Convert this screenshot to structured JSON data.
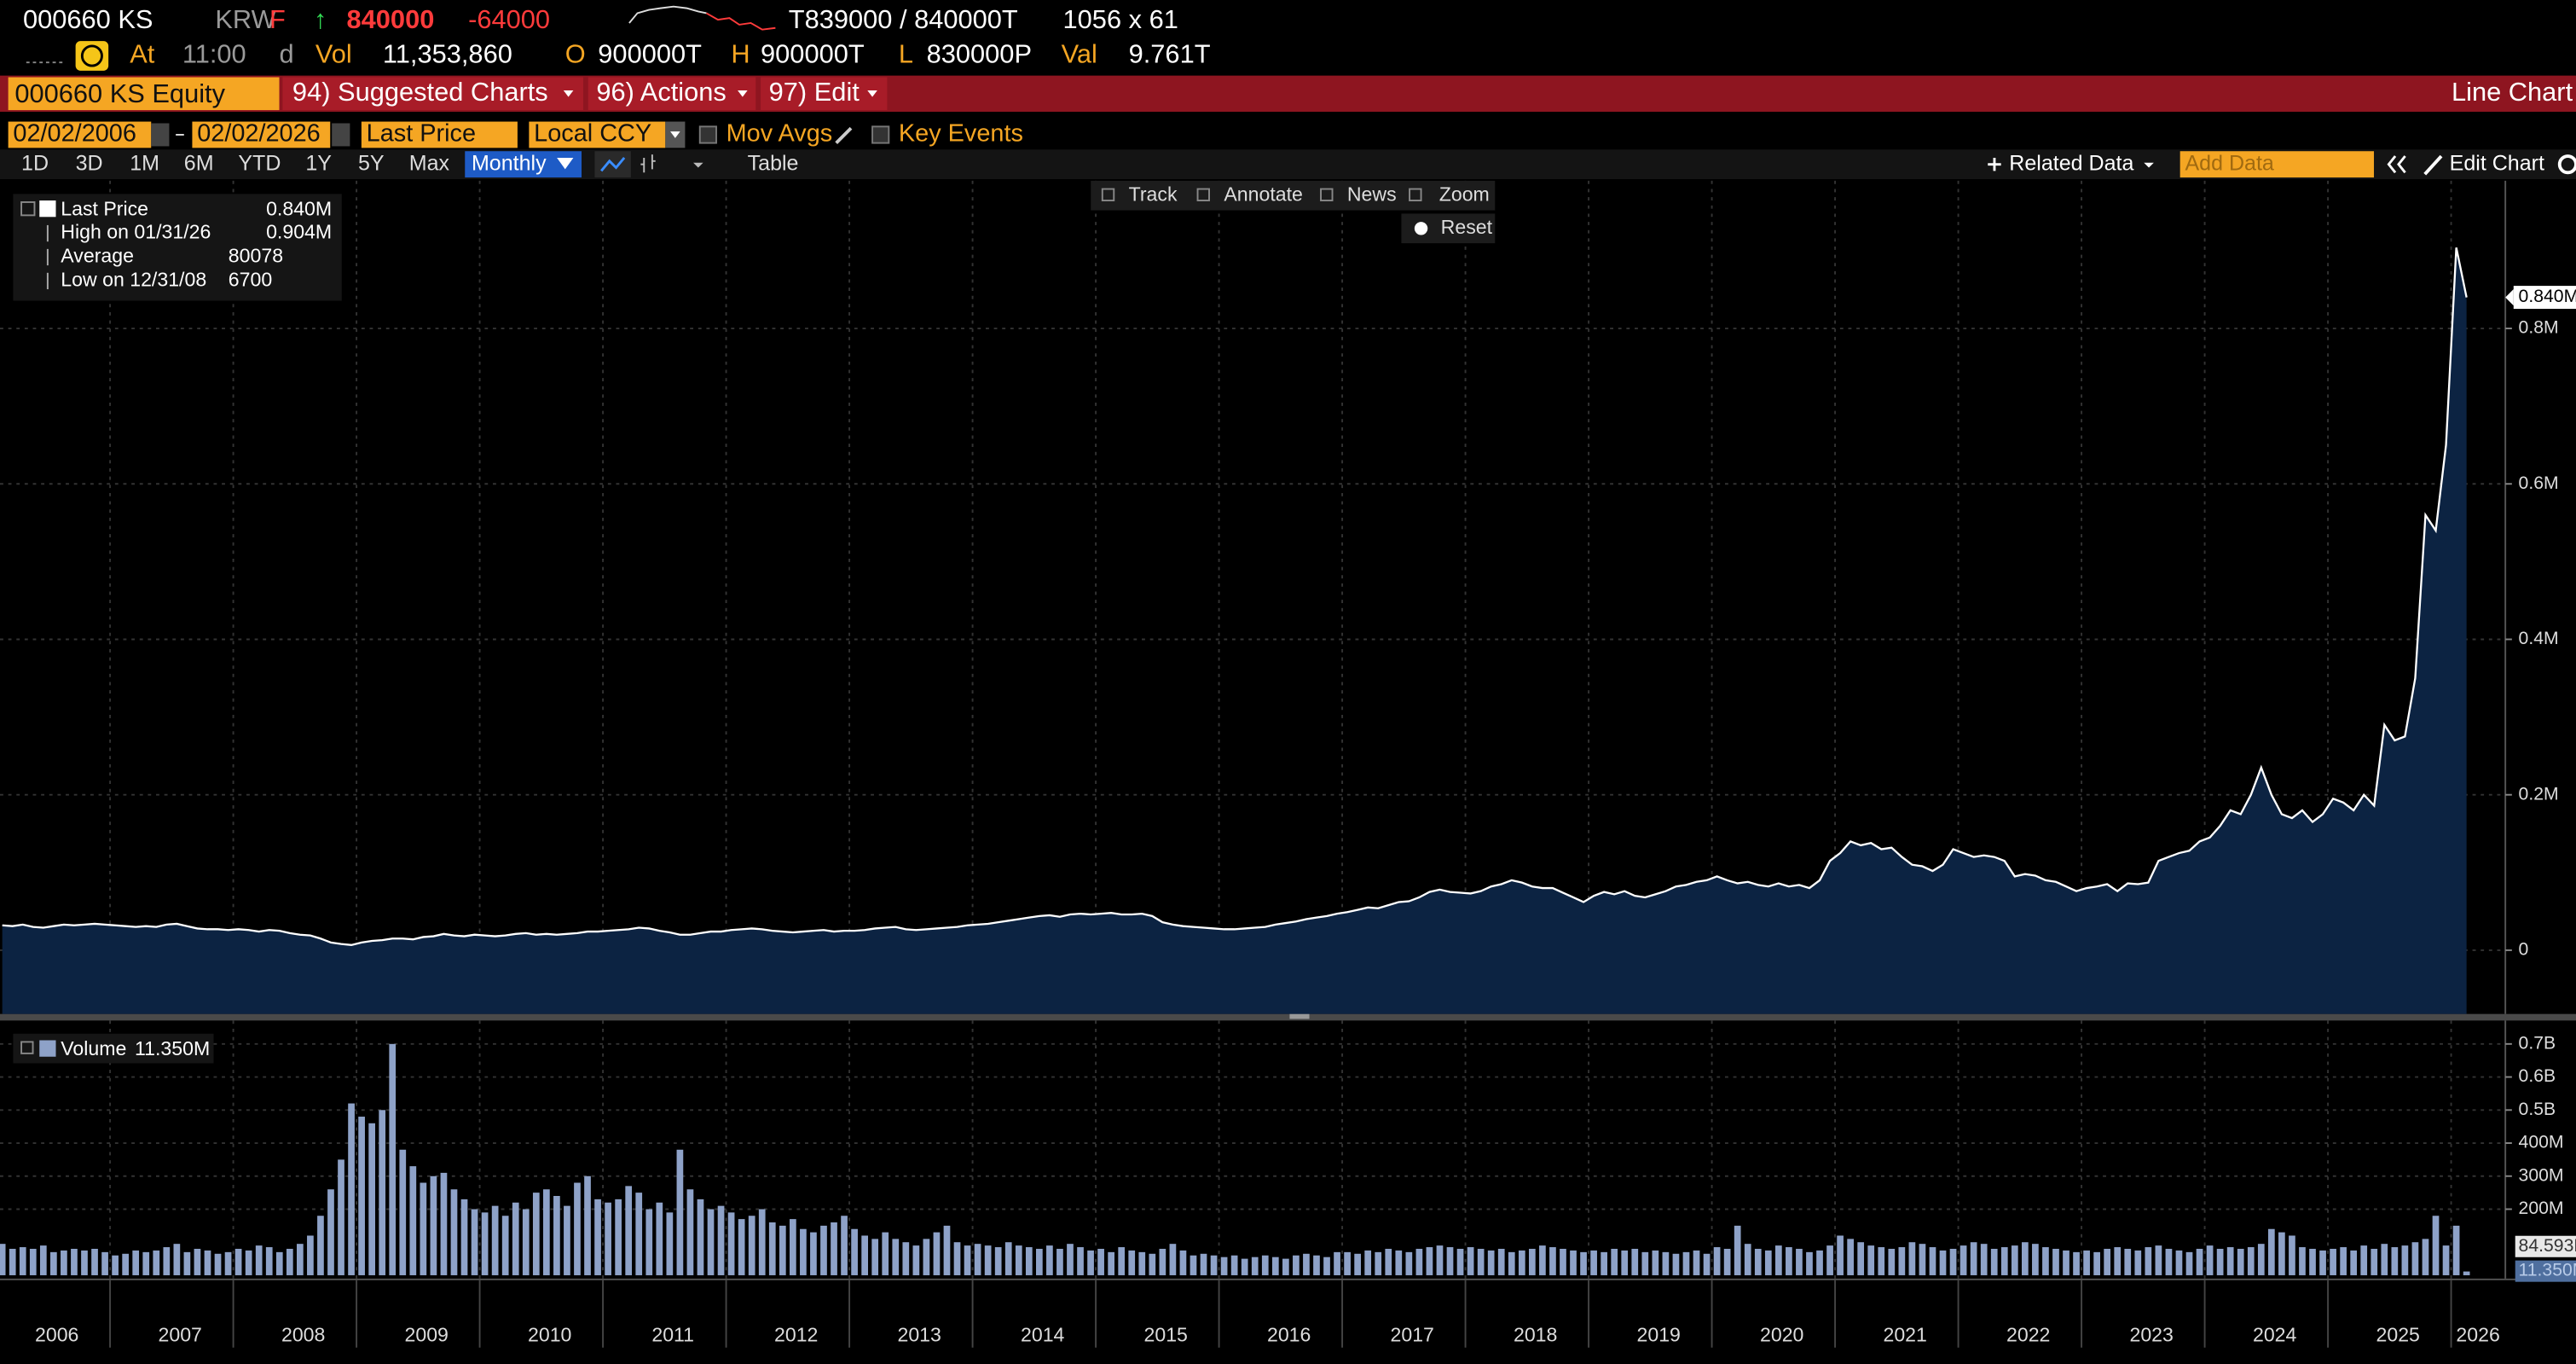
{
  "header": {
    "ticker": "000660 KS",
    "currency": "KRW",
    "flag": "F",
    "arrow": "↑",
    "last": "840000",
    "change": "-64000",
    "bidask": "T839000 / 840000T",
    "size": "1056 x 61",
    "at_label": "At",
    "time": "11:00",
    "time_flag": "d",
    "vol_label": "Vol",
    "volume": "11,353,860",
    "open_label": "O",
    "open": "900000T",
    "high_label": "H",
    "high": "900000T",
    "low_label": "L",
    "low": "830000P",
    "val_label": "Val",
    "value": "9.761T"
  },
  "menu": {
    "security": "000660 KS Equity",
    "suggested": "94) Suggested Charts",
    "actions": "96) Actions",
    "edit": "97) Edit",
    "view": "Line Chart"
  },
  "controls": {
    "start": "02/02/2006",
    "end": "02/02/2026",
    "currency": "Local CCY",
    "mov_avgs": "Mov Avgs",
    "key_events": "Key Events",
    "periods": [
      "1D",
      "3D",
      "1M",
      "6M",
      "YTD",
      "1Y",
      "5Y",
      "Max"
    ],
    "frequency": "Monthly",
    "table": "Table",
    "related": "Related Data",
    "add_data": "Add Data",
    "edit_chart": "Edit Chart",
    "tools": [
      "Track",
      "Annotate",
      "News",
      "Zoom"
    ],
    "reset": "Reset"
  },
  "chart_data": [
    {
      "type": "area",
      "series": [
        {
          "name": "Last Price",
          "color": "#ffffff",
          "fill": "#0c2342",
          "values": [
            32000,
            31000,
            33000,
            30000,
            29000,
            31000,
            33000,
            32000,
            33000,
            34000,
            33000,
            32000,
            31000,
            30000,
            31000,
            30000,
            33000,
            34000,
            31000,
            28000,
            27000,
            27000,
            26000,
            27000,
            26000,
            24000,
            26000,
            25000,
            22000,
            20000,
            19000,
            15000,
            10000,
            8000,
            6700,
            10000,
            12000,
            13000,
            15000,
            15000,
            14000,
            17000,
            18000,
            21000,
            19000,
            18000,
            20000,
            19000,
            18000,
            19000,
            21000,
            22000,
            20000,
            21000,
            20000,
            21000,
            22000,
            24000,
            24000,
            25000,
            26000,
            27000,
            29000,
            28000,
            25000,
            23000,
            20000,
            20000,
            22000,
            24000,
            24000,
            26000,
            27000,
            28000,
            27000,
            25000,
            24000,
            23000,
            24000,
            25000,
            26000,
            24000,
            25000,
            25000,
            26000,
            28000,
            29000,
            30000,
            27000,
            26000,
            27000,
            28000,
            29000,
            30000,
            32000,
            33000,
            34000,
            36000,
            38000,
            40000,
            42000,
            44000,
            45000,
            43000,
            46000,
            47000,
            46000,
            47000,
            48000,
            46000,
            46000,
            47000,
            44000,
            36000,
            33000,
            31000,
            30000,
            29000,
            28000,
            27000,
            27000,
            28000,
            29000,
            30000,
            33000,
            35000,
            37000,
            40000,
            42000,
            44000,
            47000,
            49000,
            52000,
            55000,
            54000,
            58000,
            62000,
            63000,
            68000,
            75000,
            78000,
            75000,
            74000,
            73000,
            76000,
            82000,
            85000,
            90000,
            87000,
            82000,
            80000,
            80000,
            74000,
            68000,
            62000,
            70000,
            75000,
            72000,
            76000,
            70000,
            68000,
            72000,
            76000,
            82000,
            84000,
            88000,
            90000,
            95000,
            90000,
            86000,
            88000,
            84000,
            82000,
            86000,
            82000,
            84000,
            80000,
            90000,
            115000,
            125000,
            140000,
            135000,
            138000,
            130000,
            132000,
            120000,
            110000,
            108000,
            102000,
            110000,
            130000,
            125000,
            120000,
            122000,
            120000,
            115000,
            95000,
            98000,
            96000,
            90000,
            88000,
            82000,
            76000,
            80000,
            82000,
            85000,
            76000,
            86000,
            85000,
            87000,
            115000,
            120000,
            125000,
            128000,
            140000,
            145000,
            160000,
            180000,
            175000,
            200000,
            235000,
            200000,
            175000,
            170000,
            180000,
            165000,
            175000,
            195000,
            190000,
            180000,
            200000,
            186000,
            290000,
            270000,
            275000,
            350000,
            560000,
            540000,
            650000,
            904000,
            840000
          ]
        }
      ],
      "ylim": [
        -82000,
        990000
      ],
      "yticks": [
        0,
        {
          "value": 200000,
          "label": "0.2M"
        },
        {
          "value": 400000,
          "label": "0.4M"
        },
        {
          "value": 600000,
          "label": "0.6M"
        },
        {
          "value": 800000,
          "label": "0.8M"
        }
      ],
      "grid": true,
      "last_label": "0.840M",
      "stats": [
        {
          "label": "High on 01/31/26",
          "value": "0.904M"
        },
        {
          "label": "Average",
          "value": "80078"
        },
        {
          "label": "Low on 12/31/08",
          "value": "6700"
        }
      ]
    },
    {
      "type": "bar",
      "series": [
        {
          "name": "Volume",
          "color": "#8ea2c8",
          "values": [
            95000000.0,
            80000000.0,
            85000000.0,
            80000000.0,
            90000000.0,
            70000000.0,
            75000000.0,
            80000000.0,
            75000000.0,
            80000000.0,
            70000000.0,
            60000000.0,
            65000000.0,
            75000000.0,
            70000000.0,
            75000000.0,
            85000000.0,
            95000000.0,
            70000000.0,
            80000000.0,
            75000000.0,
            65000000.0,
            70000000.0,
            80000000.0,
            75000000.0,
            90000000.0,
            85000000.0,
            70000000.0,
            80000000.0,
            95000000.0,
            120000000.0,
            180000000.0,
            260000000.0,
            350000000.0,
            520000000.0,
            480000000.0,
            460000000.0,
            500000000.0,
            700000000.0,
            380000000.0,
            330000000.0,
            280000000.0,
            300000000.0,
            310000000.0,
            260000000.0,
            230000000.0,
            200000000.0,
            190000000.0,
            210000000.0,
            180000000.0,
            220000000.0,
            200000000.0,
            250000000.0,
            260000000.0,
            240000000.0,
            210000000.0,
            280000000.0,
            300000000.0,
            230000000.0,
            220000000.0,
            230000000.0,
            270000000.0,
            250000000.0,
            200000000.0,
            220000000.0,
            190000000.0,
            380000000.0,
            260000000.0,
            230000000.0,
            200000000.0,
            210000000.0,
            190000000.0,
            170000000.0,
            180000000.0,
            200000000.0,
            160000000.0,
            150000000.0,
            170000000.0,
            140000000.0,
            130000000.0,
            150000000.0,
            160000000.0,
            180000000.0,
            140000000.0,
            120000000.0,
            110000000.0,
            130000000.0,
            110000000.0,
            100000000.0,
            90000000.0,
            110000000.0,
            130000000.0,
            150000000.0,
            100000000.0,
            90000000.0,
            95000000.0,
            90000000.0,
            85000000.0,
            100000000.0,
            90000000.0,
            85000000.0,
            80000000.0,
            90000000.0,
            80000000.0,
            95000000.0,
            85000000.0,
            75000000.0,
            80000000.0,
            70000000.0,
            85000000.0,
            75000000.0,
            70000000.0,
            65000000.0,
            80000000.0,
            95000000.0,
            75000000.0,
            60000000.0,
            65000000.0,
            60000000.0,
            55000000.0,
            60000000.0,
            50000000.0,
            55000000.0,
            60000000.0,
            55000000.0,
            50000000.0,
            60000000.0,
            65000000.0,
            60000000.0,
            55000000.0,
            70000000.0,
            70000000.0,
            65000000.0,
            75000000.0,
            70000000.0,
            80000000.0,
            75000000.0,
            70000000.0,
            80000000.0,
            85000000.0,
            90000000.0,
            85000000.0,
            80000000.0,
            85000000.0,
            80000000.0,
            75000000.0,
            80000000.0,
            70000000.0,
            75000000.0,
            80000000.0,
            90000000.0,
            85000000.0,
            80000000.0,
            75000000.0,
            70000000.0,
            75000000.0,
            70000000.0,
            80000000.0,
            75000000.0,
            80000000.0,
            70000000.0,
            75000000.0,
            70000000.0,
            65000000.0,
            70000000.0,
            75000000.0,
            65000000.0,
            85000000.0,
            80000000.0,
            150000000.0,
            95000000.0,
            80000000.0,
            75000000.0,
            90000000.0,
            85000000.0,
            80000000.0,
            70000000.0,
            75000000.0,
            90000000.0,
            120000000.0,
            110000000.0,
            100000000.0,
            90000000.0,
            85000000.0,
            80000000.0,
            85000000.0,
            100000000.0,
            95000000.0,
            85000000.0,
            75000000.0,
            80000000.0,
            90000000.0,
            100000000.0,
            95000000.0,
            80000000.0,
            85000000.0,
            90000000.0,
            100000000.0,
            95000000.0,
            85000000.0,
            80000000.0,
            75000000.0,
            70000000.0,
            75000000.0,
            70000000.0,
            80000000.0,
            85000000.0,
            80000000.0,
            75000000.0,
            85000000.0,
            90000000.0,
            80000000.0,
            75000000.0,
            70000000.0,
            80000000.0,
            90000000.0,
            80000000.0,
            85000000.0,
            80000000.0,
            85000000.0,
            95000000.0,
            140000000.0,
            130000000.0,
            120000000.0,
            85000000.0,
            80000000.0,
            75000000.0,
            80000000.0,
            85000000.0,
            75000000.0,
            90000000.0,
            80000000.0,
            95000000.0,
            85000000.0,
            90000000.0,
            100000000.0,
            110000000.0,
            180000000.0,
            90000000.0,
            150000000.0,
            11350000
          ]
        }
      ],
      "categories": [
        null,
        null,
        null,
        null,
        null,
        "2006",
        null,
        null,
        null,
        null,
        null,
        null,
        null,
        null,
        null,
        null,
        null,
        "2007",
        null,
        null,
        null,
        null,
        null,
        null,
        null,
        null,
        null,
        null,
        null,
        "2008",
        null,
        null,
        null,
        null,
        null,
        null,
        null,
        null,
        null,
        null,
        null,
        "2009",
        null,
        null,
        null,
        null,
        null,
        null,
        null,
        null,
        null,
        null,
        null,
        "2010",
        null,
        null,
        null,
        null,
        null,
        null,
        null,
        null,
        null,
        null,
        null,
        "2011",
        null,
        null,
        null,
        null,
        null,
        null,
        null,
        null,
        null,
        null,
        null,
        "2012",
        null,
        null,
        null,
        null,
        null,
        null,
        null,
        null,
        null,
        null,
        null,
        "2013",
        null,
        null,
        null,
        null,
        null,
        null,
        null,
        null,
        null,
        null,
        null,
        "2014",
        null,
        null,
        null,
        null,
        null,
        null,
        null,
        null,
        null,
        null,
        null,
        "2015",
        null,
        null,
        null,
        null,
        null,
        null,
        null,
        null,
        null,
        null,
        null,
        "2016",
        null,
        null,
        null,
        null,
        null,
        null,
        null,
        null,
        null,
        null,
        null,
        "2017",
        null,
        null,
        null,
        null,
        null,
        null,
        null,
        null,
        null,
        null,
        null,
        "2018",
        null,
        null,
        null,
        null,
        null,
        null,
        null,
        null,
        null,
        null,
        null,
        "2019",
        null,
        null,
        null,
        null,
        null,
        null,
        null,
        null,
        null,
        null,
        null,
        "2020",
        null,
        null,
        null,
        null,
        null,
        null,
        null,
        null,
        null,
        null,
        null,
        "2021",
        null,
        null,
        null,
        null,
        null,
        null,
        null,
        null,
        null,
        null,
        null,
        "2022",
        null,
        null,
        null,
        null,
        null,
        null,
        null,
        null,
        null,
        null,
        null,
        "2023",
        null,
        null,
        null,
        null,
        null,
        null,
        null,
        null,
        null,
        null,
        null,
        "2024",
        null,
        null,
        null,
        null,
        null,
        null,
        null,
        null,
        null,
        null,
        null,
        "2025",
        null,
        null,
        null,
        null,
        null,
        null,
        "2026"
      ],
      "ylim": [
        0,
        750000000
      ],
      "yticks": [
        {
          "value": 200000000,
          "label": "200M"
        },
        {
          "value": 300000000,
          "label": "300M"
        },
        {
          "value": 400000000,
          "label": "400M"
        },
        {
          "value": 500000000,
          "label": "0.5B"
        },
        {
          "value": 600000000,
          "label": "0.6B"
        },
        {
          "value": 700000000,
          "label": "0.7B"
        }
      ],
      "grid": true,
      "last_label": "11.350M",
      "average_label": "84.593M"
    }
  ]
}
